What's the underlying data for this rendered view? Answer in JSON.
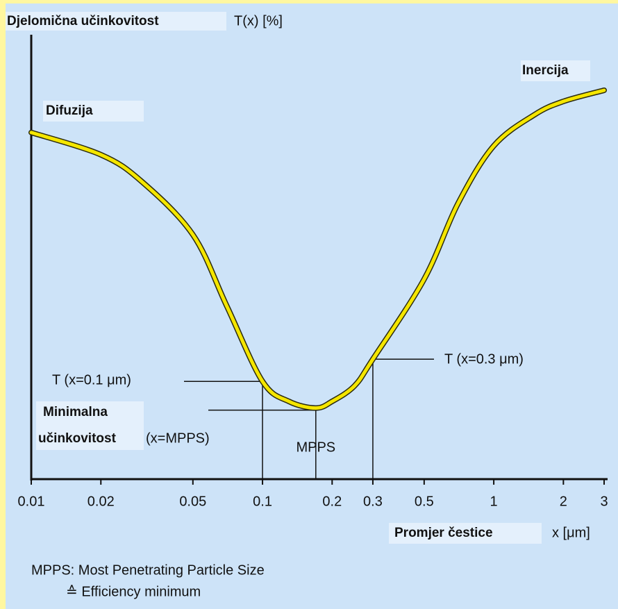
{
  "chart_data": {
    "type": "line",
    "title": "Djelomična učinkovitost",
    "y_label": "T(x) [%]",
    "x_label": "Promjer čestice",
    "x_unit": "x [μm]",
    "region_labels": [
      "Difuzija",
      "Inercija"
    ],
    "min_label": [
      "Minimalna",
      "učinkovitost"
    ],
    "footnote": [
      "MPPS: Most Penetrating Particle Size",
      "≙ Efficiency minimum"
    ],
    "x": [
      0.01,
      0.02,
      0.03,
      0.05,
      0.07,
      0.1,
      0.13,
      0.17,
      0.2,
      0.25,
      0.3,
      0.5,
      0.7,
      1,
      1.5,
      2,
      3
    ],
    "series": [
      {
        "name": "T(x)",
        "color": "#f5e600",
        "values": [
          78,
          73,
          67,
          55,
          39,
          22,
          17.5,
          16,
          17.5,
          21,
          27,
          45,
          62,
          75,
          82,
          85,
          87.5
        ]
      }
    ],
    "annotations": [
      {
        "text": "T (x=0.1 μm)",
        "x": 0.1
      },
      {
        "text": "T (x=0.3 μm)",
        "x": 0.3
      },
      {
        "text": "(x=MPPS)",
        "x": 0.17,
        "below": "MPPS"
      }
    ],
    "xlog": true,
    "xlim": [
      0.01,
      3
    ],
    "xticks": [
      0.01,
      0.02,
      0.05,
      0.1,
      0.2,
      0.3,
      0.5,
      1,
      2,
      3
    ],
    "ylim": [
      0,
      100
    ]
  }
}
